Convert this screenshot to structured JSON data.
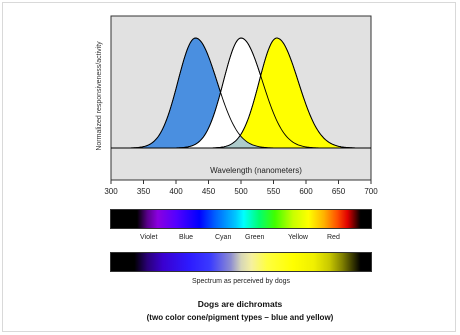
{
  "chart_data": {
    "type": "area",
    "ylabel": "Normalized responsiveness/activity",
    "xlabel": "Wavelength (nanometers)",
    "xlim": [
      300,
      700
    ],
    "ylim": [
      0,
      1
    ],
    "x_ticks": [
      "300",
      "350",
      "400",
      "450",
      "500",
      "550",
      "600",
      "650",
      "700"
    ],
    "plot_background": "#e1e1e1",
    "curves": [
      {
        "peak_nm": 430,
        "fill_color": "#4a8fe0"
      },
      {
        "peak_nm": 500,
        "fill_color": "#ffffff"
      },
      {
        "peak_nm": 555,
        "fill_color": "#ffff00"
      }
    ]
  },
  "spectrum": {
    "color_labels": [
      "Violet",
      "Blue",
      "Cyan",
      "Green",
      "Yellow",
      "Red"
    ],
    "dog_caption": "Spectrum as perceived by dogs"
  },
  "caption": {
    "title": "Dogs are dichromats",
    "subtitle": "(two color cone/pigment types – blue and yellow)"
  }
}
